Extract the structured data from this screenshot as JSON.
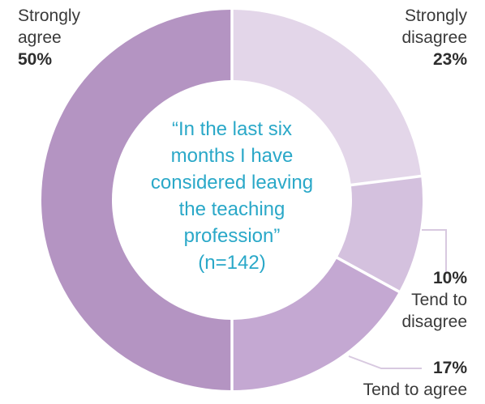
{
  "chart_data": {
    "type": "pie",
    "donut": true,
    "center_text": {
      "lines": [
        "“In the last six",
        "months I have",
        "considered leaving",
        "the teaching",
        "profession”",
        "(n=142)"
      ]
    },
    "slices": [
      {
        "label_lines": [
          "Strongly",
          "disagree"
        ],
        "pct_label": "23%",
        "value": 23,
        "color": "#e3d6e9"
      },
      {
        "label_lines": [
          "Tend to",
          "disagree"
        ],
        "pct_label": "10%",
        "value": 10,
        "color": "#d4c1de"
      },
      {
        "label_lines": [
          "Tend to agree"
        ],
        "pct_label": "17%",
        "value": 17,
        "color": "#c4a8d2"
      },
      {
        "label_lines": [
          "Strongly",
          "agree"
        ],
        "pct_label": "50%",
        "value": 50,
        "color": "#b494c2"
      }
    ],
    "leader_color": "#d8c9e0",
    "center_text_color": "#2aa8c8"
  }
}
